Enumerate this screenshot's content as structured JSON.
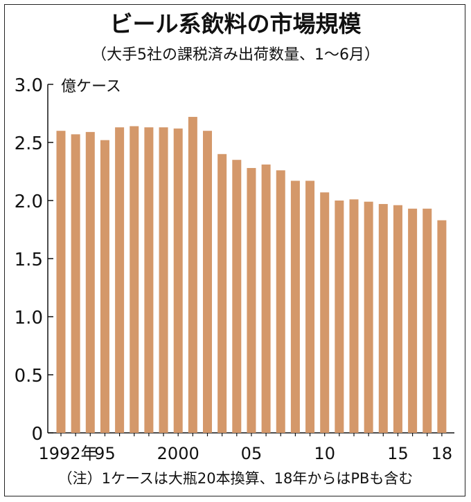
{
  "chart_data": {
    "type": "bar",
    "title": "ビール系飲料の市場規模",
    "subtitle": "（大手5社の課税済み出荷数量、1～6月）",
    "ylabel": "億ケース",
    "ylim": [
      0,
      3.0
    ],
    "yticks": [
      "0",
      "0.5",
      "1.0",
      "1.5",
      "2.0",
      "2.5",
      "3.0"
    ],
    "grid": false,
    "categories": [
      "1992",
      "1993",
      "1994",
      "1995",
      "1996",
      "1997",
      "1998",
      "1999",
      "2000",
      "2001",
      "2002",
      "2003",
      "2004",
      "2005",
      "2006",
      "2007",
      "2008",
      "2009",
      "2010",
      "2011",
      "2012",
      "2013",
      "2014",
      "2015",
      "2016",
      "2017",
      "2018"
    ],
    "xtick_labels": [
      {
        "index": 0,
        "text": "1992年"
      },
      {
        "index": 3,
        "text": "95"
      },
      {
        "index": 8,
        "text": "2000"
      },
      {
        "index": 13,
        "text": "05"
      },
      {
        "index": 18,
        "text": "10"
      },
      {
        "index": 23,
        "text": "15"
      },
      {
        "index": 26,
        "text": "18"
      }
    ],
    "values": [
      2.6,
      2.57,
      2.59,
      2.52,
      2.63,
      2.64,
      2.63,
      2.63,
      2.62,
      2.72,
      2.6,
      2.4,
      2.35,
      2.28,
      2.31,
      2.26,
      2.17,
      2.17,
      2.07,
      2.0,
      2.01,
      1.99,
      1.97,
      1.96,
      1.93,
      1.93,
      1.83
    ],
    "bar_color": "#d4986a",
    "note": "（注）1ケースは大瓶20本換算、18年からはPBも含む"
  }
}
